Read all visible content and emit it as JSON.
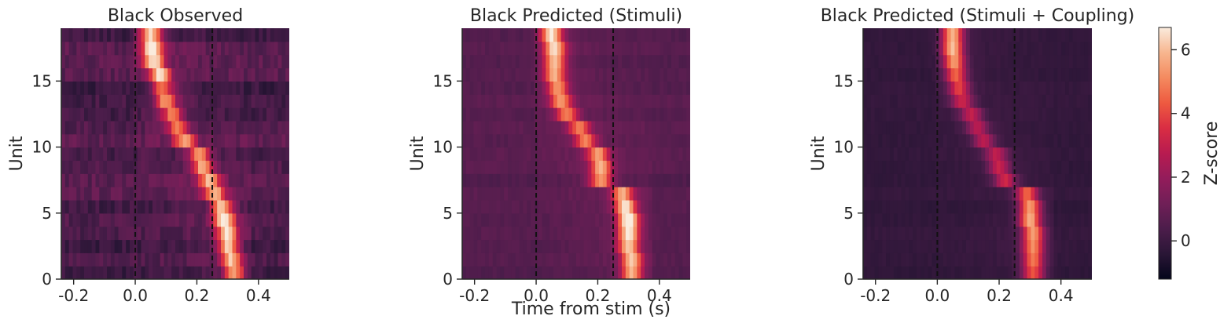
{
  "figure": {
    "shared_xlabel": "Time from stim (s)",
    "colorbar": {
      "label": "Z-score",
      "range": [
        -1.2,
        6.7
      ],
      "ticks": [
        0,
        2,
        4,
        6
      ],
      "tick_labels": [
        "0",
        "2",
        "4",
        "6"
      ],
      "colormap": "rocket",
      "colors": [
        "#03051a",
        "#2a1636",
        "#4c1d4b",
        "#701f57",
        "#931c5b",
        "#b81b50",
        "#d92d43",
        "#ee5a40",
        "#f48a5f",
        "#f7b68f",
        "#faebdd"
      ]
    }
  },
  "chart_data": [
    {
      "type": "heatmap",
      "title": "Black Observed",
      "ylabel": "Unit",
      "xlim": [
        -0.24,
        0.5
      ],
      "ylim": [
        0,
        19
      ],
      "xticks": [
        -0.2,
        0.0,
        0.2,
        0.4
      ],
      "xtick_labels": [
        "-0.2",
        "0.0",
        "0.2",
        "0.4"
      ],
      "yticks": [
        0,
        5,
        10,
        15
      ],
      "ytick_labels": [
        "0",
        "5",
        "10",
        "15"
      ],
      "event_lines_x": [
        0.0,
        0.25
      ],
      "peak_times": [
        0.32,
        0.31,
        0.3,
        0.3,
        0.29,
        0.28,
        0.26,
        0.24,
        0.22,
        0.21,
        0.16,
        0.14,
        0.12,
        0.1,
        0.09,
        0.08,
        0.06,
        0.055,
        0.05
      ],
      "peak_values": [
        5.0,
        5.2,
        5.4,
        5.6,
        6.0,
        5.6,
        4.4,
        4.6,
        4.8,
        4.4,
        4.2,
        4.0,
        4.2,
        4.6,
        4.4,
        5.0,
        5.4,
        5.8,
        5.6
      ],
      "baseline": 0.4,
      "noise": 0.9
    },
    {
      "type": "heatmap",
      "title": "Black Predicted (Stimuli)",
      "ylabel": "Unit",
      "xlim": [
        -0.24,
        0.5
      ],
      "ylim": [
        0,
        19
      ],
      "xticks": [
        -0.2,
        0.0,
        0.2,
        0.4
      ],
      "xtick_labels": [
        "-0.2",
        "0.0",
        "0.2",
        "0.4"
      ],
      "yticks": [
        0,
        5,
        10,
        15
      ],
      "ytick_labels": [
        "0",
        "5",
        "10",
        "15"
      ],
      "event_lines_x": [
        0.0,
        0.25
      ],
      "peak_times": [
        0.31,
        0.31,
        0.3,
        0.3,
        0.3,
        0.29,
        0.28,
        0.21,
        0.21,
        0.2,
        0.16,
        0.14,
        0.1,
        0.08,
        0.07,
        0.06,
        0.06,
        0.06,
        0.05
      ],
      "peak_values": [
        4.8,
        5.0,
        5.2,
        5.6,
        6.2,
        5.4,
        4.6,
        4.4,
        4.6,
        4.2,
        3.8,
        3.6,
        3.8,
        4.0,
        4.2,
        4.6,
        5.0,
        5.4,
        5.6
      ],
      "baseline": 0.6,
      "noise": 0.3
    },
    {
      "type": "heatmap",
      "title": "Black Predicted (Stimuli + Coupling)",
      "ylabel": "Unit",
      "xlim": [
        -0.24,
        0.5
      ],
      "ylim": [
        0,
        19
      ],
      "xticks": [
        -0.2,
        0.0,
        0.2,
        0.4
      ],
      "xtick_labels": [
        "-0.2",
        "0.0",
        "0.2",
        "0.4"
      ],
      "yticks": [
        0,
        5,
        10,
        15
      ],
      "ytick_labels": [
        "0",
        "5",
        "10",
        "15"
      ],
      "event_lines_x": [
        0.0,
        0.25
      ],
      "peak_times": [
        0.31,
        0.31,
        0.31,
        0.31,
        0.3,
        0.3,
        0.29,
        0.22,
        0.2,
        0.19,
        0.15,
        0.13,
        0.11,
        0.08,
        0.07,
        0.06,
        0.055,
        0.05,
        0.05
      ],
      "peak_values": [
        4.2,
        4.6,
        5.0,
        5.2,
        5.6,
        5.4,
        4.2,
        3.2,
        3.0,
        2.8,
        2.6,
        2.6,
        2.8,
        3.0,
        3.6,
        4.4,
        5.2,
        5.8,
        5.6
      ],
      "baseline": -0.2,
      "noise": 0.2
    }
  ]
}
